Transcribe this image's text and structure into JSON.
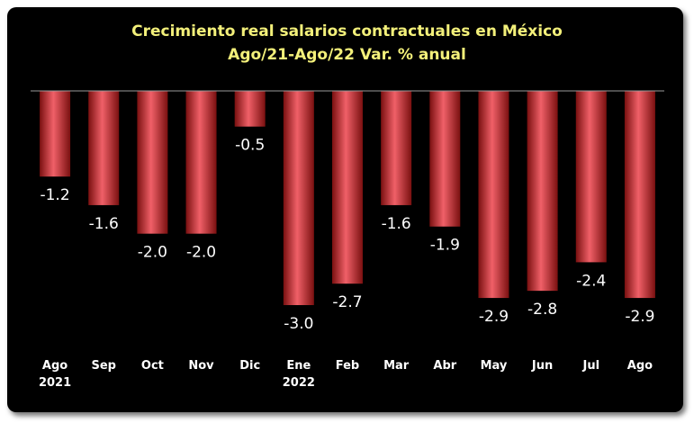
{
  "chart_data": {
    "type": "bar",
    "title": "Crecimiento real salarios contractuales en México",
    "subtitle": "Ago/21-Ago/22 Var. % anual",
    "categories": [
      "Ago",
      "Sep",
      "Oct",
      "Nov",
      "Dic",
      "Ene",
      "Feb",
      "Mar",
      "Abr",
      "May",
      "Jun",
      "Jul",
      "Ago"
    ],
    "category_years": [
      "2021",
      "",
      "",
      "",
      "",
      "2022",
      "",
      "",
      "",
      "",
      "",
      "",
      ""
    ],
    "series": [
      {
        "values": [
          -1.2,
          -1.6,
          -2.0,
          -2.0,
          -0.5,
          -3.0,
          -2.7,
          -1.6,
          -1.9,
          -2.9,
          -2.8,
          -2.4,
          -2.9
        ],
        "labels": [
          "-1.2",
          "-1.6",
          "-2.0",
          "-2.0",
          "-0.5",
          "-3.0",
          "-2.7",
          "-1.6",
          "-1.9",
          "-2.9",
          "-2.8",
          "-2.4",
          "-2.9"
        ],
        "color": "#c8262c"
      }
    ],
    "ylim": [
      -3.0,
      0
    ],
    "grid": false,
    "legend": "none",
    "colors": {
      "background": "#000000",
      "title": "#f3f07a",
      "labels": "#ffffff",
      "bar_light": "#f06068",
      "bar_dark": "#7a1010",
      "axis": "#9a9a9a"
    }
  }
}
